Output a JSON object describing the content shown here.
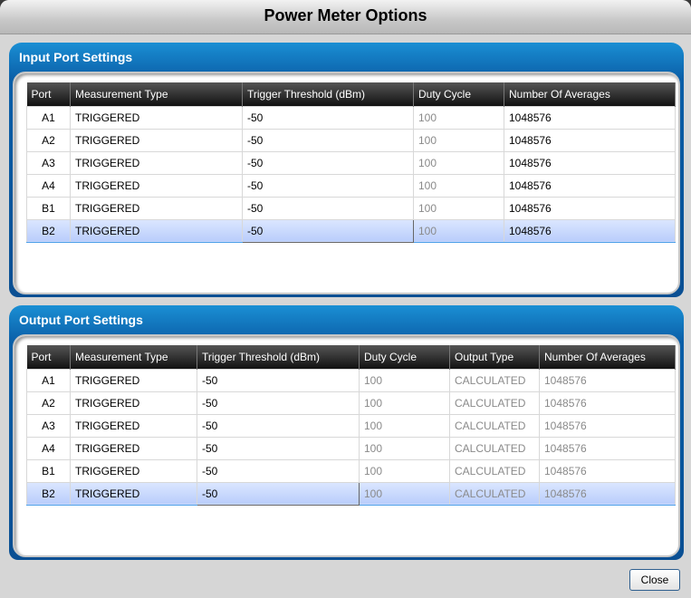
{
  "dialog": {
    "title": "Power Meter Options",
    "close_label": "Close"
  },
  "input_panel": {
    "title": "Input Port Settings",
    "columns": [
      "Port",
      "Measurement Type",
      "Trigger Threshold (dBm)",
      "Duty Cycle",
      "Number Of Averages"
    ],
    "rows": [
      [
        "A1",
        "TRIGGERED",
        "-50",
        "100",
        "1048576"
      ],
      [
        "A2",
        "TRIGGERED",
        "-50",
        "100",
        "1048576"
      ],
      [
        "A3",
        "TRIGGERED",
        "-50",
        "100",
        "1048576"
      ],
      [
        "A4",
        "TRIGGERED",
        "-50",
        "100",
        "1048576"
      ],
      [
        "B1",
        "TRIGGERED",
        "-50",
        "100",
        "1048576"
      ],
      [
        "B2",
        "TRIGGERED",
        "-50",
        "100",
        "1048576"
      ]
    ],
    "selected_row": "B2"
  },
  "output_panel": {
    "title": "Output Port Settings",
    "columns": [
      "Port",
      "Measurement Type",
      "Trigger Threshold (dBm)",
      "Duty Cycle",
      "Output Type",
      "Number Of Averages"
    ],
    "rows": [
      [
        "A1",
        "TRIGGERED",
        "-50",
        "100",
        "CALCULATED",
        "1048576"
      ],
      [
        "A2",
        "TRIGGERED",
        "-50",
        "100",
        "CALCULATED",
        "1048576"
      ],
      [
        "A3",
        "TRIGGERED",
        "-50",
        "100",
        "CALCULATED",
        "1048576"
      ],
      [
        "A4",
        "TRIGGERED",
        "-50",
        "100",
        "CALCULATED",
        "1048576"
      ],
      [
        "B1",
        "TRIGGERED",
        "-50",
        "100",
        "CALCULATED",
        "1048576"
      ],
      [
        "B2",
        "TRIGGERED",
        "-50",
        "100",
        "CALCULATED",
        "1048576"
      ]
    ],
    "selected_row": "B2"
  }
}
